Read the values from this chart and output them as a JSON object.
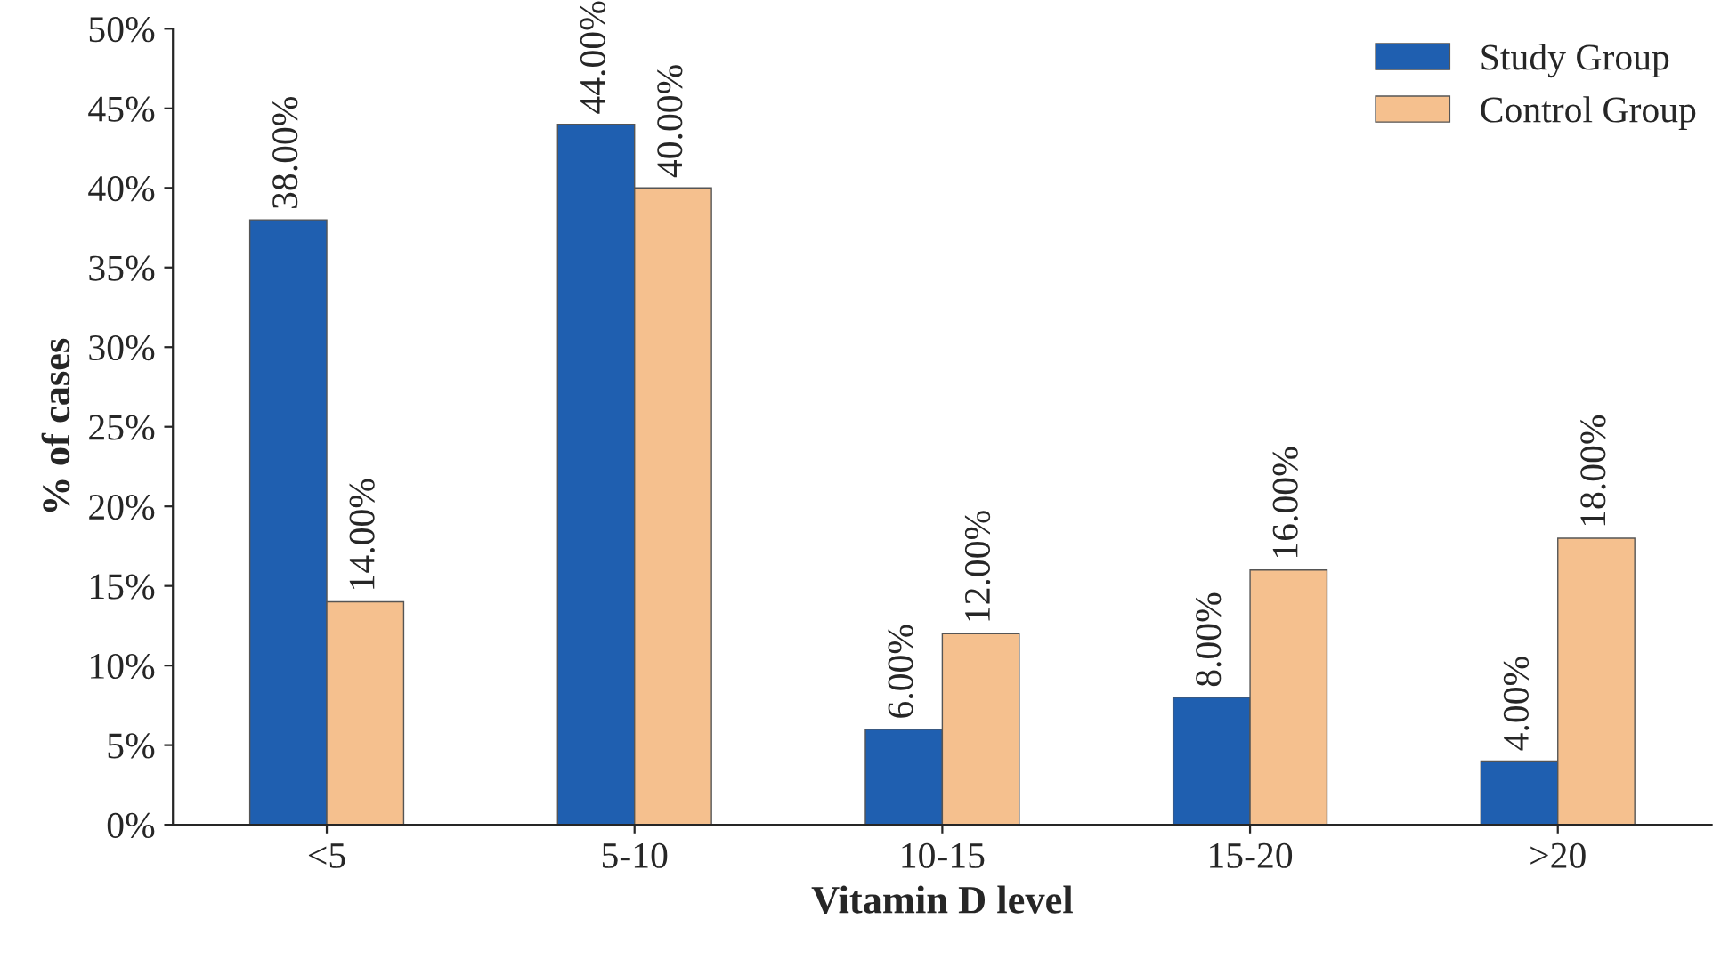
{
  "chart_data": {
    "type": "bar",
    "xlabel": "Vitamin D level",
    "ylabel": "% of cases",
    "categories": [
      "<5",
      "5-10",
      "10-15",
      "15-20",
      ">20"
    ],
    "series": [
      {
        "name": "Study Group",
        "color": "#1f5fb0",
        "values": [
          38,
          44,
          6,
          8,
          4
        ],
        "value_labels": [
          "38.00%",
          "44.00%",
          "6.00%",
          "8.00%",
          "4.00%"
        ]
      },
      {
        "name": "Control Group",
        "color": "#f5c08e",
        "values": [
          14,
          40,
          12,
          16,
          18
        ],
        "value_labels": [
          "14.00%",
          "40.00%",
          "12.00%",
          "16.00%",
          "18.00%"
        ]
      }
    ],
    "ylim": [
      0,
      50
    ],
    "yticks": [
      {
        "value": 0,
        "label": "0%"
      },
      {
        "value": 5,
        "label": "5%"
      },
      {
        "value": 10,
        "label": "10%"
      },
      {
        "value": 15,
        "label": "15%"
      },
      {
        "value": 20,
        "label": "20%"
      },
      {
        "value": 25,
        "label": "25%"
      },
      {
        "value": 30,
        "label": "30%"
      },
      {
        "value": 35,
        "label": "35%"
      },
      {
        "value": 40,
        "label": "40%"
      },
      {
        "value": 45,
        "label": "45%"
      },
      {
        "value": 50,
        "label": "50%"
      }
    ],
    "legend": "top right",
    "grid": false
  }
}
